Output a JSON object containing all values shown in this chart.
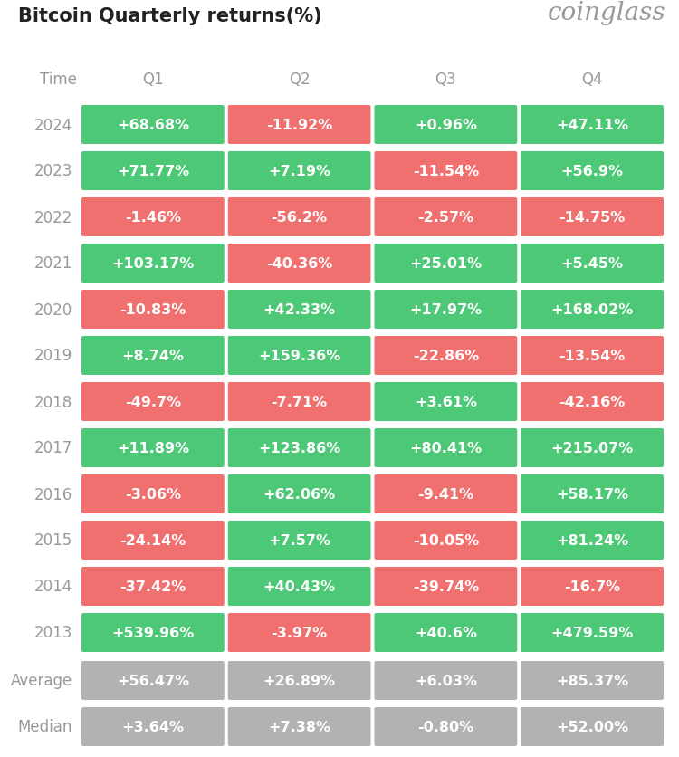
{
  "title": "Bitcoin Quarterly returns(%)",
  "brand": "coinglass",
  "columns": [
    "Q1",
    "Q2",
    "Q3",
    "Q4"
  ],
  "rows": [
    {
      "year": "2024",
      "values": [
        "+68.68%",
        "-11.92%",
        "+0.96%",
        "+47.11%"
      ]
    },
    {
      "year": "2023",
      "values": [
        "+71.77%",
        "+7.19%",
        "-11.54%",
        "+56.9%"
      ]
    },
    {
      "year": "2022",
      "values": [
        "-1.46%",
        "-56.2%",
        "-2.57%",
        "-14.75%"
      ]
    },
    {
      "year": "2021",
      "values": [
        "+103.17%",
        "-40.36%",
        "+25.01%",
        "+5.45%"
      ]
    },
    {
      "year": "2020",
      "values": [
        "-10.83%",
        "+42.33%",
        "+17.97%",
        "+168.02%"
      ]
    },
    {
      "year": "2019",
      "values": [
        "+8.74%",
        "+159.36%",
        "-22.86%",
        "-13.54%"
      ]
    },
    {
      "year": "2018",
      "values": [
        "-49.7%",
        "-7.71%",
        "+3.61%",
        "-42.16%"
      ]
    },
    {
      "year": "2017",
      "values": [
        "+11.89%",
        "+123.86%",
        "+80.41%",
        "+215.07%"
      ]
    },
    {
      "year": "2016",
      "values": [
        "-3.06%",
        "+62.06%",
        "-9.41%",
        "+58.17%"
      ]
    },
    {
      "year": "2015",
      "values": [
        "-24.14%",
        "+7.57%",
        "-10.05%",
        "+81.24%"
      ]
    },
    {
      "year": "2014",
      "values": [
        "-37.42%",
        "+40.43%",
        "-39.74%",
        "-16.7%"
      ]
    },
    {
      "year": "2013",
      "values": [
        "+539.96%",
        "-3.97%",
        "+40.6%",
        "+479.59%"
      ]
    }
  ],
  "average_row": {
    "year": "Average",
    "values": [
      "+56.47%",
      "+26.89%",
      "+6.03%",
      "+85.37%"
    ]
  },
  "median_row": {
    "year": "Median",
    "values": [
      "+3.64%",
      "+7.38%",
      "-0.80%",
      "+52.00%"
    ]
  },
  "green_color": "#4cc876",
  "red_color": "#f07070",
  "gray_color": "#b2b2b2",
  "white_text": "#ffffff",
  "dark_text": "#222222",
  "light_gray_text": "#999999",
  "bg_color": "#ffffff",
  "title_fontsize": 15,
  "brand_fontsize": 20,
  "header_fontsize": 12,
  "cell_fontsize": 11.5,
  "year_fontsize": 12
}
